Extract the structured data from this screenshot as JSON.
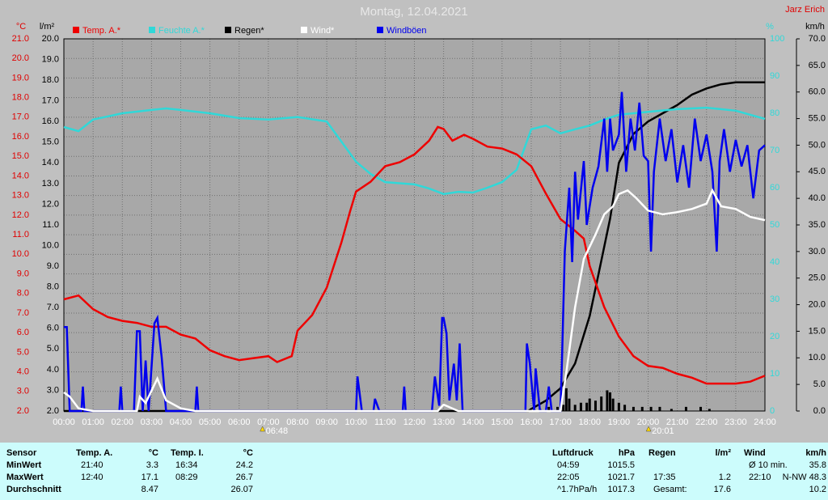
{
  "title": "Montag, 12.04.2021",
  "author": "Jarz Erich",
  "chart_data": {
    "type": "line",
    "units": {
      "y": "°C",
      "y2": "l/m²",
      "y3": "%",
      "y4": "km/h"
    },
    "xlim": [
      0,
      24
    ],
    "xticks": [
      {
        "value": 0,
        "label": "00:00"
      },
      {
        "value": 1,
        "label": "01:00"
      },
      {
        "value": 2,
        "label": "02:00"
      },
      {
        "value": 3,
        "label": "03:00"
      },
      {
        "value": 4,
        "label": "04:00"
      },
      {
        "value": 5,
        "label": "05:00"
      },
      {
        "value": 6,
        "label": "06:00"
      },
      {
        "value": 7,
        "label": "07:00"
      },
      {
        "value": 8,
        "label": "08:00"
      },
      {
        "value": 9,
        "label": "09:00"
      },
      {
        "value": 10,
        "label": "10:00"
      },
      {
        "value": 11,
        "label": "11:00"
      },
      {
        "value": 12,
        "label": "12:00"
      },
      {
        "value": 13,
        "label": "13:00"
      },
      {
        "value": 14,
        "label": "14:00"
      },
      {
        "value": 15,
        "label": "15:00"
      },
      {
        "value": 16,
        "label": "16:00"
      },
      {
        "value": 17,
        "label": "17:00"
      },
      {
        "value": 18,
        "label": "18:00"
      },
      {
        "value": 19,
        "label": "19:00"
      },
      {
        "value": 20,
        "label": "20:00"
      },
      {
        "value": 21,
        "label": "21:00"
      },
      {
        "value": 22,
        "label": "22:00"
      },
      {
        "value": 23,
        "label": "23:00"
      },
      {
        "value": 24,
        "label": "24:00"
      }
    ],
    "ylim": [
      2,
      21
    ],
    "yticks": [
      {
        "value": 2,
        "label": "2.0"
      },
      {
        "value": 3,
        "label": "3.0"
      },
      {
        "value": 4,
        "label": "4.0"
      },
      {
        "value": 5,
        "label": "5.0"
      },
      {
        "value": 6,
        "label": "6.0"
      },
      {
        "value": 7,
        "label": "7.0"
      },
      {
        "value": 8,
        "label": "8.0"
      },
      {
        "value": 9,
        "label": "9.0"
      },
      {
        "value": 10,
        "label": "10.0"
      },
      {
        "value": 11,
        "label": "11.0"
      },
      {
        "value": 12,
        "label": "12.0"
      },
      {
        "value": 13,
        "label": "13.0"
      },
      {
        "value": 14,
        "label": "14.0"
      },
      {
        "value": 15,
        "label": "15.0"
      },
      {
        "value": 16,
        "label": "16.0"
      },
      {
        "value": 17,
        "label": "17.0"
      },
      {
        "value": 18,
        "label": "18.0"
      },
      {
        "value": 19,
        "label": "19.0"
      },
      {
        "value": 20,
        "label": "20.0"
      },
      {
        "value": 21,
        "label": "21.0"
      }
    ],
    "y2lim": [
      2,
      20
    ],
    "y2ticks": [
      {
        "value": 2,
        "label": "2.0"
      },
      {
        "value": 3,
        "label": "3.0"
      },
      {
        "value": 4,
        "label": "4.0"
      },
      {
        "value": 5,
        "label": "5.0"
      },
      {
        "value": 6,
        "label": "6.0"
      },
      {
        "value": 7,
        "label": "7.0"
      },
      {
        "value": 8,
        "label": "8.0"
      },
      {
        "value": 9,
        "label": "9.0"
      },
      {
        "value": 10,
        "label": "10.0"
      },
      {
        "value": 11,
        "label": "11.0"
      },
      {
        "value": 12,
        "label": "12.0"
      },
      {
        "value": 13,
        "label": "13.0"
      },
      {
        "value": 14,
        "label": "14.0"
      },
      {
        "value": 15,
        "label": "15.0"
      },
      {
        "value": 16,
        "label": "16.0"
      },
      {
        "value": 17,
        "label": "17.0"
      },
      {
        "value": 18,
        "label": "18.0"
      },
      {
        "value": 19,
        "label": "19.0"
      },
      {
        "value": 20,
        "label": "20.0"
      }
    ],
    "y3lim": [
      0,
      100
    ],
    "y3ticks": [
      0,
      10,
      20,
      30,
      40,
      50,
      60,
      70,
      80,
      90,
      100
    ],
    "y4lim": [
      0,
      70
    ],
    "y4ticks": [
      {
        "value": 0,
        "label": "0.0"
      },
      {
        "value": 5,
        "label": "5.0"
      },
      {
        "value": 10,
        "label": "10.0"
      },
      {
        "value": 15,
        "label": "15.0"
      },
      {
        "value": 20,
        "label": "20.0"
      },
      {
        "value": 25,
        "label": "25.0"
      },
      {
        "value": 30,
        "label": "30.0"
      },
      {
        "value": 35,
        "label": "35.0"
      },
      {
        "value": 40,
        "label": "40.0"
      },
      {
        "value": 45,
        "label": "45.0"
      },
      {
        "value": 50,
        "label": "50.0"
      },
      {
        "value": 55,
        "label": "55.0"
      },
      {
        "value": 60,
        "label": "60.0"
      },
      {
        "value": 65,
        "label": "65.0"
      },
      {
        "value": 70,
        "label": "70.0"
      }
    ],
    "grid": true,
    "series": [
      {
        "name": "Temp. A.*",
        "color": "#ee0000",
        "axis": "y",
        "x": [
          0,
          0.5,
          1,
          1.5,
          2,
          2.5,
          3,
          3.5,
          4,
          4.5,
          5,
          5.5,
          6,
          6.5,
          7,
          7.3,
          7.8,
          8,
          8.5,
          9,
          9.5,
          9.8,
          10,
          10.5,
          11,
          11.5,
          12,
          12.5,
          12.8,
          13,
          13.3,
          13.7,
          14,
          14.5,
          15,
          15.5,
          16,
          16.5,
          17,
          17.5,
          17.8,
          18,
          18.5,
          19,
          19.5,
          20,
          20.5,
          21,
          21.5,
          22,
          22.5,
          23,
          23.5,
          24
        ],
        "values": [
          7.7,
          7.9,
          7.2,
          6.8,
          6.6,
          6.5,
          6.3,
          6.3,
          5.9,
          5.7,
          5.1,
          4.8,
          4.6,
          4.7,
          4.8,
          4.5,
          4.8,
          6.1,
          6.9,
          8.3,
          10.6,
          12.2,
          13.2,
          13.7,
          14.5,
          14.7,
          15.1,
          15.8,
          16.5,
          16.4,
          15.8,
          16.1,
          15.9,
          15.5,
          15.4,
          15.1,
          14.5,
          13.1,
          11.8,
          11.2,
          10.8,
          9.4,
          7.3,
          5.8,
          4.8,
          4.3,
          4.2,
          3.9,
          3.7,
          3.4,
          3.4,
          3.4,
          3.5,
          3.8
        ]
      },
      {
        "name": "Feuchte A.*",
        "color": "#30d8d8",
        "axis": "y3",
        "x": [
          0,
          0.5,
          1,
          2,
          3,
          3.5,
          4,
          5,
          6,
          7,
          8,
          9,
          9.5,
          10,
          10.5,
          11,
          12,
          12.5,
          13,
          13.5,
          14,
          14.5,
          15,
          15.5,
          16,
          16.5,
          17,
          17.5,
          18,
          18.5,
          19,
          20,
          21,
          22,
          23,
          24
        ],
        "values": [
          76.3,
          75.2,
          78.3,
          80,
          80.9,
          81.3,
          80.9,
          80,
          78.7,
          78.3,
          79,
          77.8,
          72.4,
          67,
          63.7,
          61.5,
          60.9,
          59.8,
          58.3,
          58.9,
          58.7,
          60,
          61.5,
          64.8,
          75.7,
          76.7,
          74.6,
          75.7,
          76.7,
          78.3,
          79.6,
          80.4,
          81.1,
          81.5,
          80.7,
          78.5
        ]
      },
      {
        "name": "Regen*",
        "color": "#000000",
        "axis": "y2",
        "x": [
          0,
          15.9,
          16,
          16.5,
          17,
          17.5,
          18,
          18.3,
          18.7,
          19,
          19.5,
          20,
          20.5,
          21,
          21.5,
          22,
          22.5,
          23,
          24
        ],
        "values": [
          2,
          2,
          2.1,
          2.5,
          3.1,
          4.3,
          6.6,
          8.6,
          11.3,
          14,
          15.4,
          16,
          16.4,
          16.8,
          17.3,
          17.6,
          17.8,
          17.9,
          17.9
        ]
      },
      {
        "name": "Wind*",
        "color": "#ffffff",
        "axis": "y4",
        "x": [
          0,
          0.2,
          0.5,
          1,
          2.5,
          2.6,
          2.8,
          3.2,
          3.5,
          4,
          4.5,
          12.8,
          13,
          13.5,
          17,
          17.2,
          17.5,
          17.8,
          18.2,
          18.5,
          18.8,
          19,
          19.3,
          19.6,
          20,
          20.5,
          21,
          21.5,
          22,
          22.2,
          22.5,
          23,
          23.5,
          24
        ],
        "values": [
          3.5,
          2.7,
          0.5,
          0,
          0,
          2.7,
          1.5,
          6.1,
          2,
          0.5,
          0,
          0,
          1.2,
          0,
          0,
          7.3,
          19.5,
          28.6,
          33.2,
          37,
          38.5,
          40.8,
          41.5,
          40,
          37.7,
          37,
          37.4,
          38,
          39,
          41.5,
          38.5,
          38,
          36.5,
          35.9
        ]
      },
      {
        "name": "Windböen",
        "color": "#0000ee",
        "axis": "y4",
        "x": [
          0,
          0.1,
          0.2,
          0.6,
          0.65,
          0.7,
          1.9,
          1.95,
          2,
          2.4,
          2.5,
          2.6,
          2.7,
          2.8,
          2.9,
          3.1,
          3.2,
          3.35,
          3.5,
          4.5,
          4.55,
          4.6,
          10,
          10.05,
          10.2,
          10.6,
          10.65,
          10.8,
          11.6,
          11.65,
          11.7,
          12.6,
          12.7,
          12.85,
          12.95,
          13,
          13.1,
          13.2,
          13.35,
          13.45,
          13.55,
          13.65,
          15.8,
          15.85,
          15.95,
          16.1,
          16.15,
          16.3,
          16.5,
          16.6,
          16.7,
          17,
          17.05,
          17.15,
          17.3,
          17.4,
          17.5,
          17.6,
          17.8,
          17.9,
          18.1,
          18.3,
          18.5,
          18.6,
          18.7,
          18.8,
          19,
          19.1,
          19.25,
          19.4,
          19.55,
          19.7,
          19.85,
          20,
          20.1,
          20.2,
          20.4,
          20.6,
          20.8,
          21,
          21.2,
          21.4,
          21.6,
          21.8,
          22,
          22.2,
          22.35,
          22.45,
          22.6,
          22.8,
          23,
          23.2,
          23.4,
          23.6,
          23.8,
          24
        ],
        "values": [
          15.8,
          15.8,
          0,
          0,
          4.6,
          0,
          0,
          4.6,
          0,
          0,
          15,
          15,
          0,
          9.5,
          0,
          16.5,
          17.5,
          10,
          0,
          0,
          4.6,
          0,
          0,
          6.5,
          0,
          0,
          2.3,
          0,
          0,
          4.6,
          0,
          0,
          6.5,
          1,
          17.5,
          17.5,
          14.6,
          2,
          8.9,
          2,
          12.7,
          0,
          0,
          12.7,
          9,
          0,
          8,
          0,
          0,
          4.6,
          0,
          0,
          8.9,
          30,
          42,
          28,
          45,
          36,
          47,
          35,
          42,
          46,
          55,
          45,
          55,
          49,
          52,
          60,
          45,
          55,
          49,
          58,
          48,
          47,
          30,
          45,
          55,
          47,
          53,
          43,
          50,
          42,
          55,
          47,
          52,
          45,
          30,
          47,
          53,
          45,
          51,
          46,
          50,
          40,
          49,
          50
        ]
      },
      {
        "type": "bar",
        "color": "#000000",
        "axis": "y2",
        "x": [
          16.1,
          16.3,
          16.6,
          16.9,
          17.1,
          17.2,
          17.3,
          17.5,
          17.7,
          17.9,
          18,
          18.2,
          18.4,
          18.6,
          18.7,
          18.8,
          19,
          19.2,
          19.5,
          19.8,
          20.1,
          20.4,
          20.8,
          21.3,
          21.8,
          22.1
        ],
        "values": [
          2.1,
          2.1,
          2.2,
          2.2,
          2.3,
          3.1,
          2.6,
          2.3,
          2.4,
          2.4,
          2.6,
          2.5,
          2.7,
          3,
          2.9,
          2.6,
          2.4,
          2.3,
          2.2,
          2.2,
          2.2,
          2.2,
          2.1,
          2.2,
          2.2,
          2.1
        ]
      }
    ],
    "annotations": [
      {
        "x": 6.8,
        "text": "06:48"
      },
      {
        "x": 20.0167,
        "text": "20:01"
      }
    ]
  },
  "table": {
    "sensor_header": "Sensor",
    "row_labels": [
      "MinWert",
      "MaxWert",
      "Durchschnitt"
    ],
    "sections": [
      {
        "title": "Temp. A.",
        "unit": "°C",
        "rows": [
          [
            "21:40",
            "3.3"
          ],
          [
            "12:40",
            "17.1"
          ],
          [
            null,
            "8.47"
          ]
        ]
      },
      {
        "title": "Temp. I.",
        "unit": "°C",
        "rows": [
          [
            "16:34",
            "24.2"
          ],
          [
            "08:29",
            "26.7"
          ],
          [
            null,
            "26.07"
          ]
        ]
      },
      {
        "title": "Luftdruck",
        "unit": "hPa",
        "rows": [
          [
            "04:59",
            "1015.5"
          ],
          [
            "22:05",
            "1021.7"
          ],
          [
            "^1.7hPa/h",
            "1017.3"
          ]
        ]
      },
      {
        "title": "Regen",
        "unit": "l/m²",
        "rows": [
          [
            null,
            null
          ],
          [
            "17:35",
            "1.2"
          ],
          [
            "Gesamt:",
            "17.6"
          ]
        ]
      },
      {
        "title": "Wind",
        "unit": "km/h",
        "rows": [
          [
            "Ø 10 min.",
            "35.8"
          ],
          [
            "22:10",
            "N-NW 48.3"
          ],
          [
            null,
            "10.2"
          ]
        ]
      }
    ]
  }
}
